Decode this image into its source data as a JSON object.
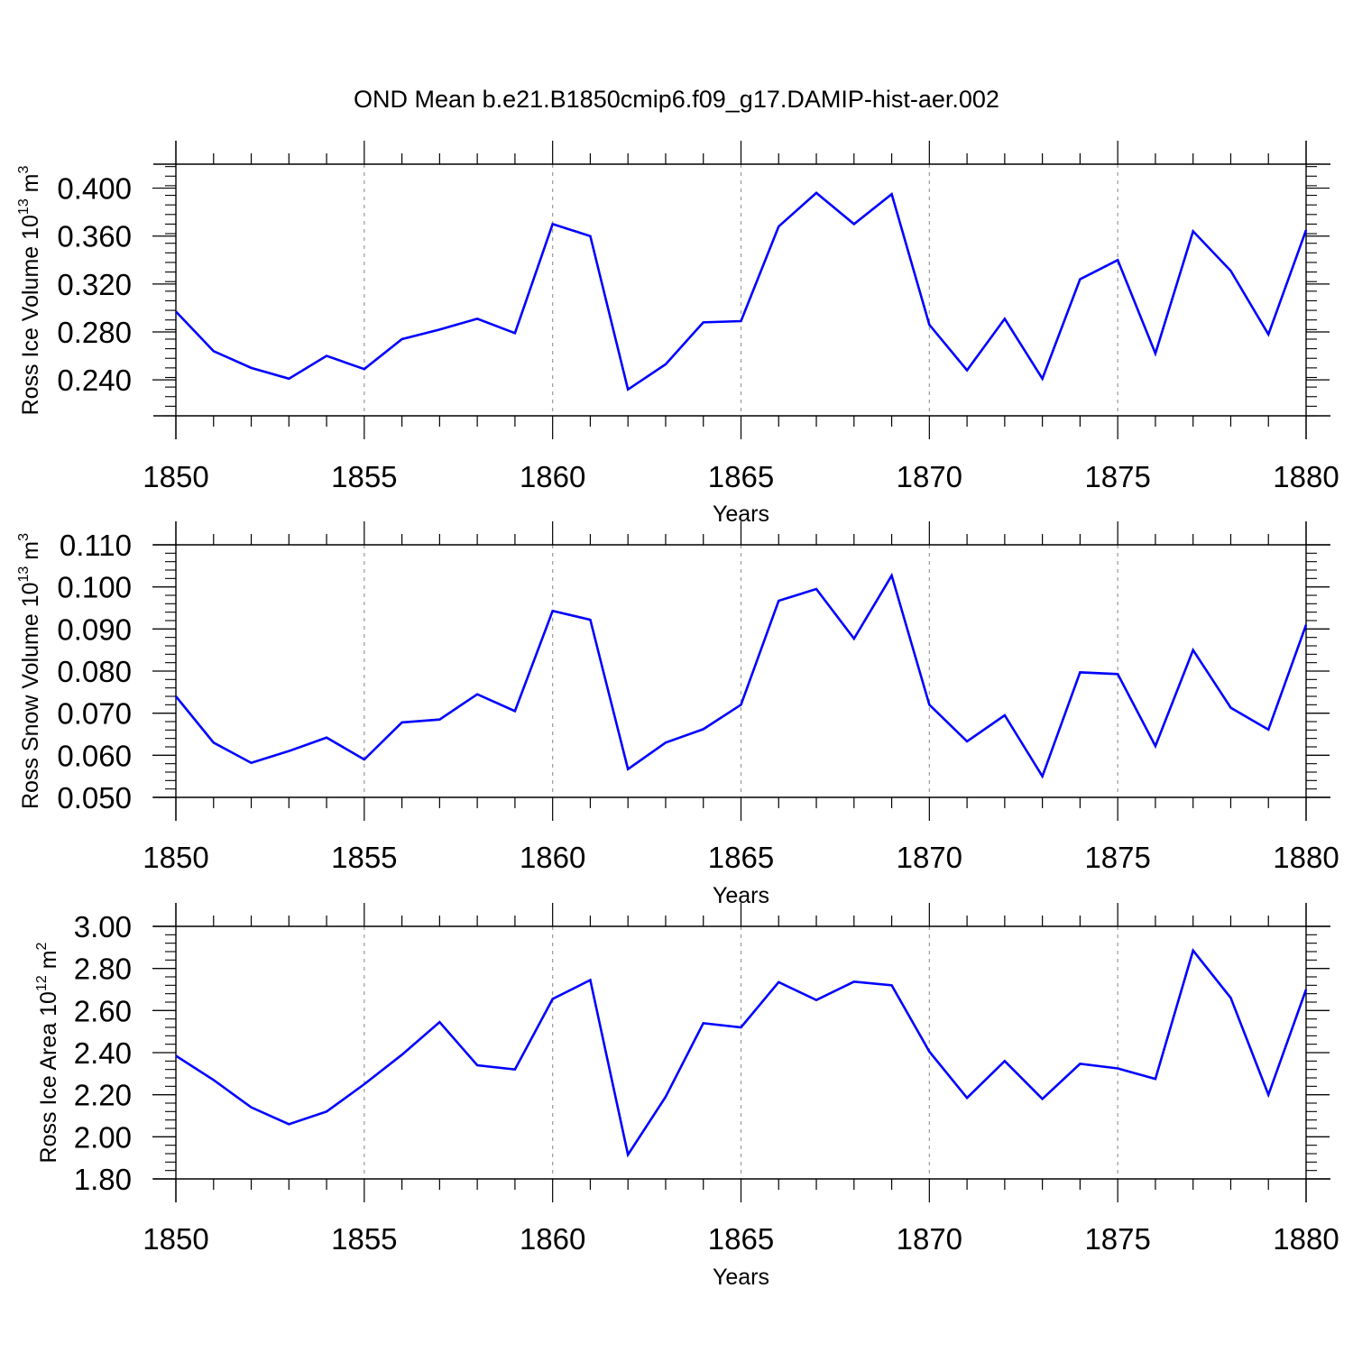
{
  "title": "OND Mean b.e21.B1850cmip6.f09_g17.DAMIP-hist-aer.002",
  "colors": {
    "line": "#0000ff",
    "axis": "#000000",
    "grid": "#999999"
  },
  "chart_data": [
    {
      "type": "line",
      "ylabel_main": "Ross Ice Volume 10",
      "ylabel_sup": "13",
      "ylabel_unit": " m",
      "ylabel_unit_sup": "3",
      "xlabel": "Years",
      "xlim": [
        1850,
        1880
      ],
      "ylim": [
        0.21,
        0.42
      ],
      "x_ticks": [
        1850,
        1855,
        1860,
        1865,
        1870,
        1875,
        1880
      ],
      "y_ticks": [
        0.24,
        0.28,
        0.32,
        0.36,
        0.4
      ],
      "y_tick_labels": [
        "0.240",
        "0.280",
        "0.320",
        "0.360",
        "0.400"
      ],
      "y_minor_step": 0.008,
      "x": [
        1850,
        1851,
        1852,
        1853,
        1854,
        1855,
        1856,
        1857,
        1858,
        1859,
        1860,
        1861,
        1862,
        1863,
        1864,
        1865,
        1866,
        1867,
        1868,
        1869,
        1870,
        1871,
        1872,
        1873,
        1874,
        1875,
        1876,
        1877,
        1878,
        1879,
        1880
      ],
      "values": [
        0.297,
        0.264,
        0.25,
        0.241,
        0.26,
        0.249,
        0.274,
        0.282,
        0.291,
        0.279,
        0.37,
        0.36,
        0.232,
        0.253,
        0.288,
        0.289,
        0.368,
        0.396,
        0.37,
        0.395,
        0.286,
        0.248,
        0.291,
        0.241,
        0.324,
        0.34,
        0.262,
        0.364,
        0.331,
        0.278,
        0.365
      ]
    },
    {
      "type": "line",
      "ylabel_main": "Ross Snow Volume 10",
      "ylabel_sup": "13",
      "ylabel_unit": " m",
      "ylabel_unit_sup": "3",
      "xlabel": "Years",
      "xlim": [
        1850,
        1880
      ],
      "ylim": [
        0.05,
        0.11
      ],
      "x_ticks": [
        1850,
        1855,
        1860,
        1865,
        1870,
        1875,
        1880
      ],
      "y_ticks": [
        0.05,
        0.06,
        0.07,
        0.08,
        0.09,
        0.1,
        0.11
      ],
      "y_tick_labels": [
        "0.050",
        "0.060",
        "0.070",
        "0.080",
        "0.090",
        "0.100",
        "0.110"
      ],
      "y_minor_step": 0.002,
      "x": [
        1850,
        1851,
        1852,
        1853,
        1854,
        1855,
        1856,
        1857,
        1858,
        1859,
        1860,
        1861,
        1862,
        1863,
        1864,
        1865,
        1866,
        1867,
        1868,
        1869,
        1870,
        1871,
        1872,
        1873,
        1874,
        1875,
        1876,
        1877,
        1878,
        1879,
        1880
      ],
      "values": [
        0.074,
        0.063,
        0.0582,
        0.061,
        0.0642,
        0.059,
        0.0678,
        0.0685,
        0.0745,
        0.0705,
        0.0943,
        0.0922,
        0.0567,
        0.063,
        0.0662,
        0.072,
        0.0967,
        0.0995,
        0.0877,
        0.1027,
        0.072,
        0.0633,
        0.0695,
        0.055,
        0.0797,
        0.0793,
        0.0622,
        0.085,
        0.0713,
        0.0661,
        0.091
      ]
    },
    {
      "type": "line",
      "ylabel_main": "Ross Ice Area 10",
      "ylabel_sup": "12",
      "ylabel_unit": " m",
      "ylabel_unit_sup": "2",
      "xlabel": "Years",
      "xlim": [
        1850,
        1880
      ],
      "ylim": [
        1.8,
        3.0
      ],
      "x_ticks": [
        1850,
        1855,
        1860,
        1865,
        1870,
        1875,
        1880
      ],
      "y_ticks": [
        1.8,
        2.0,
        2.2,
        2.4,
        2.6,
        2.8,
        3.0
      ],
      "y_tick_labels": [
        "1.80",
        "2.00",
        "2.20",
        "2.40",
        "2.60",
        "2.80",
        "3.00"
      ],
      "y_minor_step": 0.04,
      "x": [
        1850,
        1851,
        1852,
        1853,
        1854,
        1855,
        1856,
        1857,
        1858,
        1859,
        1860,
        1861,
        1862,
        1863,
        1864,
        1865,
        1866,
        1867,
        1868,
        1869,
        1870,
        1871,
        1872,
        1873,
        1874,
        1875,
        1876,
        1877,
        1878,
        1879,
        1880
      ],
      "values": [
        2.385,
        2.27,
        2.14,
        2.06,
        2.12,
        2.25,
        2.39,
        2.545,
        2.34,
        2.32,
        2.655,
        2.745,
        1.915,
        2.19,
        2.54,
        2.52,
        2.735,
        2.65,
        2.737,
        2.72,
        2.405,
        2.185,
        2.36,
        2.18,
        2.347,
        2.325,
        2.275,
        2.885,
        2.66,
        2.2,
        2.7
      ]
    }
  ]
}
